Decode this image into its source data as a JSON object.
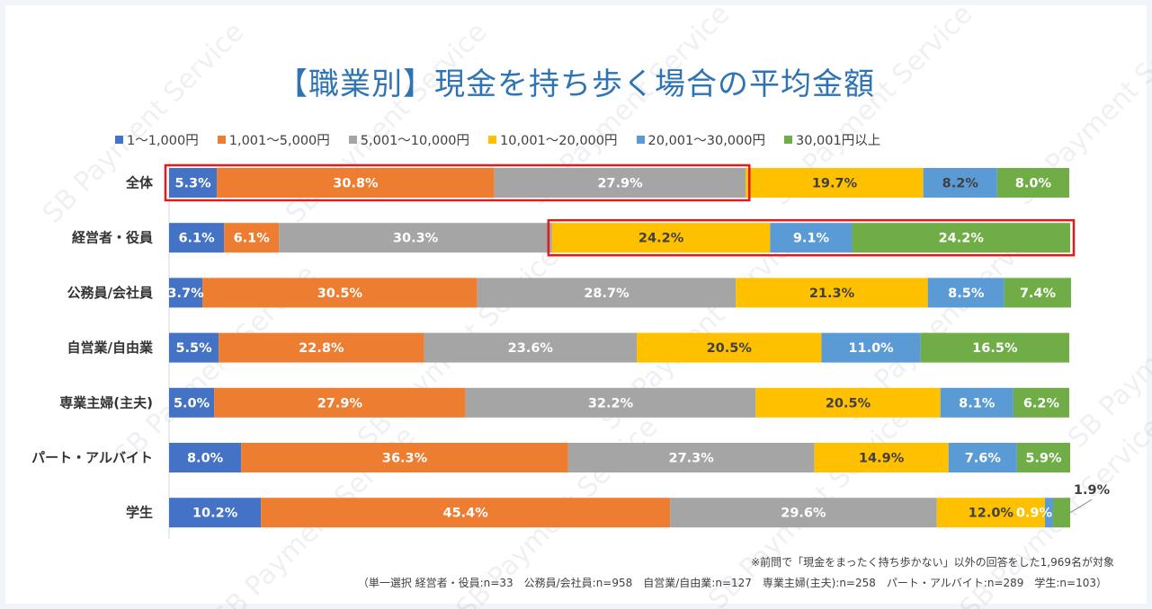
{
  "title": "【職業別】現金を持ち歩く場合の平均金額",
  "watermark_text": "SB Payment Service",
  "notes": {
    "line1": "※前問で「現金をまったく持ち歩かない」以外の回答をした1,969名が対象",
    "line2": "（単一選択 経営者・役員:n=33　公務員/会社員:n=958　自営業/自由業:n=127　専業主婦(主夫):n=258　パート・アルバイト:n=289　学生:n=103）"
  },
  "colors": {
    "highlight": "#e31a1c",
    "axis": "#d9d9d9",
    "label_light": "#ffffff",
    "label_dark": "#404040"
  },
  "chart_data": {
    "type": "bar",
    "orientation": "horizontal",
    "stacked": "percent",
    "categories": [
      "全体",
      "経営者・役員",
      "公務員/会社員",
      "自営業/自由業",
      "専業主婦(主夫)",
      "パート・アルバイト",
      "学生"
    ],
    "series": [
      {
        "name": "1～1,000円",
        "color": "#4472c4",
        "values": [
          5.3,
          6.1,
          3.7,
          5.5,
          5.0,
          8.0,
          10.2
        ],
        "labels": [
          "5.3%",
          "6.1%",
          "3.7%",
          "5.5%",
          "5.0%",
          "8.0%",
          "10.2%"
        ]
      },
      {
        "name": "1,001～5,000円",
        "color": "#ed7d31",
        "values": [
          30.8,
          6.1,
          30.5,
          22.8,
          27.9,
          36.3,
          45.4
        ],
        "labels": [
          "30.8%",
          "6.1%",
          "30.5%",
          "22.8%",
          "27.9%",
          "36.3%",
          "45.4%"
        ]
      },
      {
        "name": "5,001～10,000円",
        "color": "#a5a5a5",
        "values": [
          27.9,
          30.3,
          28.7,
          23.6,
          32.2,
          27.3,
          29.6
        ],
        "labels": [
          "27.9%",
          "30.3%",
          "28.7%",
          "23.6%",
          "32.2%",
          "27.3%",
          "29.6%"
        ]
      },
      {
        "name": "10,001～20,000円",
        "color": "#ffc000",
        "values": [
          19.7,
          24.2,
          21.3,
          20.5,
          20.5,
          14.9,
          12.0
        ],
        "labels": [
          "19.7%",
          "24.2%",
          "21.3%",
          "20.5%",
          "20.5%",
          "14.9%",
          "12.0%"
        ]
      },
      {
        "name": "20,001～30,000円",
        "color": "#5b9bd5",
        "values": [
          8.2,
          9.1,
          8.5,
          11.0,
          8.1,
          7.6,
          0.9
        ],
        "labels": [
          "8.2%",
          "9.1%",
          "8.5%",
          "11.0%",
          "8.1%",
          "7.6%",
          "0.9%"
        ]
      },
      {
        "name": "30,001円以上",
        "color": "#70ad47",
        "values": [
          8.0,
          24.2,
          7.4,
          16.5,
          6.2,
          5.9,
          1.9
        ],
        "labels": [
          "8.0%",
          "24.2%",
          "7.4%",
          "16.5%",
          "6.2%",
          "5.9%",
          "1.9%"
        ]
      }
    ],
    "xlim": [
      0,
      100
    ],
    "legend_position": "top",
    "grid": false,
    "highlights": [
      {
        "category": "全体",
        "series_from": 0,
        "series_to": 2
      },
      {
        "category": "経営者・役員",
        "series_from": 3,
        "series_to": 5
      }
    ]
  }
}
